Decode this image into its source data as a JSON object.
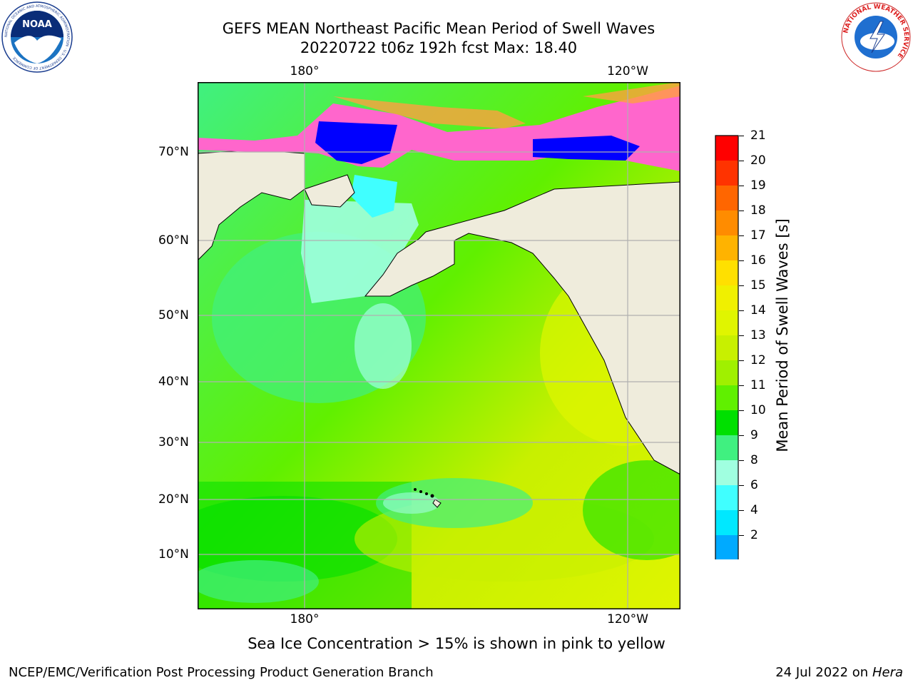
{
  "header": {
    "title_line1": "GEFS MEAN Northeast Pacific Mean Period of Swell Waves",
    "title_line2": "20220722 t06z 192h fcst   Max: 18.40"
  },
  "logos": {
    "noaa_text": "NOAA",
    "noaa_ring_text": "NATIONAL OCEANIC AND ATMOSPHERIC ADMINISTRATION · U.S. DEPARTMENT OF COMMERCE",
    "nws_ring_text": "NATIONAL WEATHER SERVICE"
  },
  "map": {
    "lon_labels": [
      "180°",
      "120°W"
    ],
    "lat_labels": [
      "70°N",
      "60°N",
      "50°N",
      "40°N",
      "30°N",
      "20°N",
      "10°N"
    ],
    "colors": {
      "land": "#efecdc",
      "ice_pink": "#ff66cc",
      "ice_orange": "#ffa040",
      "deep_blue": "#0000ff"
    }
  },
  "colorbar": {
    "label": "Mean Period of Swell Waves [s]",
    "ticks": [
      "21",
      "20",
      "19",
      "18",
      "17",
      "16",
      "15",
      "14",
      "13",
      "12",
      "11",
      "10",
      "9",
      "8",
      "6",
      "4",
      "2"
    ],
    "colors": [
      "#ff0000",
      "#ff3300",
      "#ff6600",
      "#ff8c00",
      "#ffb300",
      "#ffe000",
      "#f0f000",
      "#e0f500",
      "#c8f000",
      "#a0f000",
      "#60f000",
      "#00e000",
      "#40f080",
      "#a0ffe0",
      "#40ffff",
      "#00e8ff",
      "#00aaff",
      "#0060ff"
    ],
    "extend_color": "#0000ff"
  },
  "notes": {
    "ice_note": "Sea Ice Concentration > 15% is shown in pink to yellow"
  },
  "footer": {
    "left": "NCEP/EMC/Verification Post Processing Product Generation Branch",
    "right_date": "24 Jul 2022 on ",
    "right_host": "Hera"
  }
}
